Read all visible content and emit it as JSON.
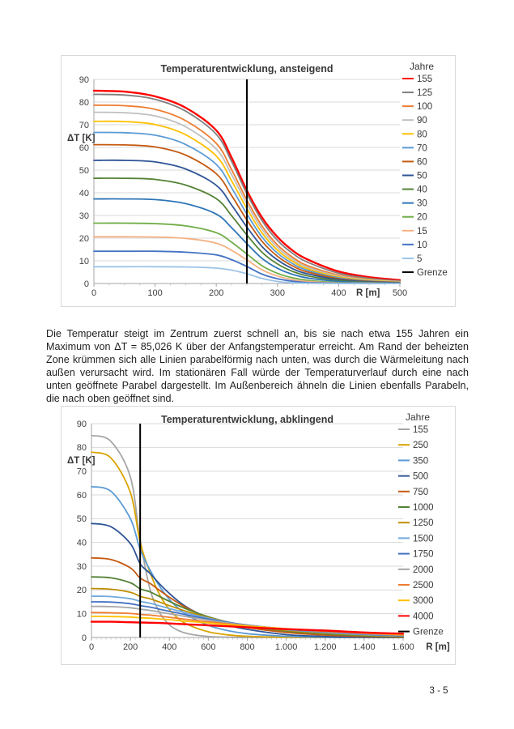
{
  "page": {
    "paragraph": "Die Temperatur steigt im Zentrum zuerst schnell an, bis sie nach etwa 155 Jahren ein Maximum von ΔT = 85,026 K über der Anfangstemperatur erreicht. Am Rand der beheizten Zone krümmen sich alle Linien parabelförmig nach unten, was durch die Wärmeleitung nach außen verursacht wird. Im stationären Fall würde der Temperaturverlauf durch eine nach unten geöffnete Parabel dargestellt. Im Außenbereich ähneln die Linien ebenfalls Parabeln, die nach oben geöffnet sind.",
    "page_number": "3 - 5"
  },
  "colors": {
    "grid": "#d9d9d9",
    "axis": "#a6a6a6",
    "minor_tick": "#bfbfbf",
    "boundary": "#000000"
  },
  "chart_data": [
    {
      "type": "line",
      "title": "Temperaturentwicklung, ansteigend",
      "ylabel": "ΔT [K]",
      "xlabel": "R [m]",
      "legend_title": "Jahre",
      "xlim": [
        0,
        500
      ],
      "ylim": [
        0,
        90
      ],
      "xticks": [
        0,
        100,
        200,
        300,
        400,
        500
      ],
      "xtick_labels": [
        "0",
        "100",
        "200",
        "300",
        "400",
        "500"
      ],
      "yticks": [
        0,
        10,
        20,
        30,
        40,
        50,
        60,
        70,
        80,
        90
      ],
      "ytick_labels": [
        "0",
        "10",
        "20",
        "30",
        "40",
        "50",
        "60",
        "70",
        "80",
        "90"
      ],
      "minor_xtick_step": 25,
      "grid": "horizontal",
      "legend_position": "right",
      "boundary": {
        "name": "Grenze",
        "x": 250,
        "color": "#000000"
      },
      "x": [
        0,
        50,
        100,
        150,
        200,
        225,
        250,
        275,
        300,
        325,
        350,
        400,
        450,
        500
      ],
      "series": [
        {
          "name": "155",
          "color": "#ff0000",
          "width": 2.4,
          "values": [
            85,
            84.6,
            82.5,
            77.5,
            67.5,
            55.5,
            41,
            29,
            20.5,
            14.5,
            10.5,
            5.3,
            2.8,
            1.5
          ]
        },
        {
          "name": "125",
          "color": "#7f7f7f",
          "width": 1.8,
          "values": [
            83.4,
            83.1,
            81.2,
            76,
            65.8,
            53.8,
            39.6,
            27.6,
            19,
            13.2,
            9.3,
            4.5,
            2.3,
            1.1
          ]
        },
        {
          "name": "100",
          "color": "#ed7d31",
          "width": 1.8,
          "values": [
            78.6,
            78.4,
            76.8,
            71.8,
            61.8,
            50.2,
            36.8,
            25.2,
            17,
            11.5,
            7.8,
            3.7,
            1.8,
            0.9
          ]
        },
        {
          "name": "90",
          "color": "#bfbfbf",
          "width": 1.8,
          "values": [
            75.5,
            75.3,
            73.9,
            69.1,
            59.3,
            48,
            35.1,
            23.8,
            15.9,
            10.6,
            7.1,
            3.3,
            1.6,
            0.8
          ]
        },
        {
          "name": "80",
          "color": "#ffc000",
          "width": 1.8,
          "values": [
            71.5,
            71.4,
            70.1,
            65.6,
            56.2,
            45.3,
            33,
            22.2,
            14.7,
            9.7,
            6.4,
            2.9,
            1.4,
            0.6
          ]
        },
        {
          "name": "70",
          "color": "#5b9bd5",
          "width": 1.8,
          "values": [
            66.6,
            66.5,
            65.4,
            61.3,
            52.5,
            42.2,
            30.6,
            20.4,
            13.4,
            8.7,
            5.7,
            2.5,
            1.1,
            0.5
          ]
        },
        {
          "name": "60",
          "color": "#c55a11",
          "width": 1.8,
          "values": [
            61.2,
            61.1,
            60.2,
            56.6,
            48.4,
            38.8,
            28,
            18.5,
            12,
            7.7,
            5,
            2.1,
            0.9,
            0.4
          ]
        },
        {
          "name": "50",
          "color": "#2f5597",
          "width": 1.8,
          "values": [
            54.3,
            54.3,
            53.6,
            50.5,
            43.3,
            34.6,
            24.9,
            16.2,
            10.4,
            6.5,
            4.2,
            1.7,
            0.7,
            0.3
          ]
        },
        {
          "name": "40",
          "color": "#548235",
          "width": 1.8,
          "values": [
            46.4,
            46.4,
            45.9,
            43.4,
            37.4,
            29.9,
            21.4,
            13.7,
            8.6,
            5.3,
            3.3,
            1.3,
            0.5,
            0.2
          ]
        },
        {
          "name": "30",
          "color": "#2e75b6",
          "width": 1.8,
          "values": [
            37.3,
            37.3,
            37,
            35.2,
            30.6,
            24.6,
            17.6,
            11,
            6.7,
            4,
            2.4,
            0.9,
            0.3,
            0.1
          ]
        },
        {
          "name": "20",
          "color": "#70ad47",
          "width": 1.8,
          "values": [
            26.6,
            26.6,
            26.4,
            25.4,
            22.4,
            18.2,
            13,
            7.8,
            4.5,
            2.5,
            1.4,
            0.4,
            0.1,
            0
          ]
        },
        {
          "name": "15",
          "color": "#f4b183",
          "width": 1.8,
          "values": [
            20.6,
            20.6,
            20.5,
            19.9,
            17.8,
            14.6,
            10.4,
            6,
            3.3,
            1.7,
            0.9,
            0.2,
            0.1,
            0
          ]
        },
        {
          "name": "10",
          "color": "#4472c4",
          "width": 1.8,
          "values": [
            14.2,
            14.2,
            14.2,
            13.8,
            12.6,
            10.5,
            7.5,
            4.1,
            2.1,
            1,
            0.4,
            0.1,
            0,
            0
          ]
        },
        {
          "name": "5",
          "color": "#9dc3e6",
          "width": 1.8,
          "values": [
            7.4,
            7.4,
            7.4,
            7.3,
            6.8,
            5.9,
            4.3,
            2.2,
            0.9,
            0.3,
            0.1,
            0,
            0,
            0
          ]
        }
      ]
    },
    {
      "type": "line",
      "title": "Temperaturentwicklung, abklingend",
      "ylabel": "ΔT [K]",
      "xlabel": "R [m]",
      "legend_title": "Jahre",
      "xlim": [
        0,
        1600
      ],
      "ylim": [
        0,
        90
      ],
      "xticks": [
        0,
        200,
        400,
        600,
        800,
        1000,
        1200,
        1400,
        1600
      ],
      "xtick_labels": [
        "0",
        "200",
        "400",
        "600",
        "800",
        "1.000",
        "1.200",
        "1.400",
        "1.600"
      ],
      "yticks": [
        0,
        10,
        20,
        30,
        40,
        50,
        60,
        70,
        80,
        90
      ],
      "ytick_labels": [
        "0",
        "10",
        "20",
        "30",
        "40",
        "50",
        "60",
        "70",
        "80",
        "90"
      ],
      "minor_xtick_step": 25,
      "grid": "horizontal",
      "legend_position": "right",
      "boundary": {
        "name": "Grenze",
        "x": 250,
        "color": "#000000"
      },
      "x": [
        0,
        100,
        200,
        250,
        300,
        350,
        400,
        450,
        500,
        600,
        700,
        800,
        1000,
        1200,
        1400,
        1600
      ],
      "series": [
        {
          "name": "155",
          "color": "#a6a6a6",
          "width": 1.8,
          "values": [
            85,
            82.5,
            67.5,
            41,
            20.5,
            10.5,
            5.3,
            2.8,
            1.5,
            0.4,
            0.1,
            0,
            0,
            0,
            0,
            0
          ]
        },
        {
          "name": "250",
          "color": "#d9a300",
          "width": 1.8,
          "values": [
            78,
            75.5,
            61,
            40,
            27.5,
            18,
            11.7,
            7.7,
            5.2,
            2.4,
            1.1,
            0.5,
            0.1,
            0,
            0,
            0
          ]
        },
        {
          "name": "350",
          "color": "#5b9bd5",
          "width": 1.8,
          "values": [
            63.5,
            61.5,
            50,
            37,
            28.5,
            21.5,
            16,
            12,
            9,
            5.1,
            2.9,
            1.6,
            0.5,
            0.1,
            0,
            0
          ]
        },
        {
          "name": "500",
          "color": "#2f5597",
          "width": 1.8,
          "values": [
            48,
            46.6,
            39.5,
            31,
            27,
            22.5,
            18.5,
            15,
            12.2,
            8,
            5.2,
            3.4,
            1.2,
            0.4,
            0.1,
            0
          ]
        },
        {
          "name": "750",
          "color": "#c55a11",
          "width": 1.8,
          "values": [
            33.5,
            32.8,
            29.3,
            25,
            22.8,
            19.8,
            16.9,
            14.3,
            12,
            8.4,
            5.9,
            4.2,
            2.1,
            1,
            0.4,
            0.15
          ]
        },
        {
          "name": "1000",
          "color": "#548235",
          "width": 1.8,
          "values": [
            25.5,
            25.1,
            23,
            20.5,
            19.2,
            17.2,
            15.2,
            13.3,
            11.6,
            8.7,
            6.5,
            4.8,
            2.7,
            1.5,
            0.7,
            0.3
          ]
        },
        {
          "name": "1250",
          "color": "#bf8f00",
          "width": 1.8,
          "values": [
            20.6,
            20.3,
            19,
            17.3,
            16.3,
            14.9,
            13.4,
            12,
            10.7,
            8.4,
            6.5,
            5,
            3,
            1.8,
            1,
            0.45
          ]
        },
        {
          "name": "1500",
          "color": "#71a9dd",
          "width": 1.8,
          "values": [
            17.4,
            17.2,
            16.3,
            15.2,
            14.4,
            13.3,
            12.2,
            11.1,
            10,
            8.1,
            6.5,
            5.2,
            3.3,
            2.1,
            1.2,
            0.6
          ]
        },
        {
          "name": "1750",
          "color": "#4472c4",
          "width": 1.8,
          "values": [
            15,
            14.9,
            14.2,
            13.4,
            12.8,
            11.9,
            11,
            10.2,
            9.3,
            7.7,
            6.3,
            5.2,
            3.5,
            2.3,
            1.4,
            0.75
          ]
        },
        {
          "name": "2000",
          "color": "#a6a6a6",
          "width": 1.8,
          "values": [
            13.1,
            13,
            12.5,
            11.9,
            11.4,
            10.7,
            10,
            9.3,
            8.6,
            7.3,
            6.1,
            5.1,
            3.6,
            2.5,
            1.6,
            0.9
          ]
        },
        {
          "name": "2500",
          "color": "#ed7d31",
          "width": 1.8,
          "values": [
            10.5,
            10.4,
            10.1,
            9.7,
            9.4,
            9,
            8.5,
            8,
            7.5,
            6.6,
            5.7,
            4.9,
            3.6,
            2.6,
            1.8,
            1.1
          ]
        },
        {
          "name": "3000",
          "color": "#ffc000",
          "width": 1.8,
          "values": [
            8.9,
            8.8,
            8.6,
            8.3,
            8.1,
            7.8,
            7.5,
            7.1,
            6.8,
            6.1,
            5.4,
            4.8,
            3.7,
            2.8,
            2,
            1.3
          ]
        },
        {
          "name": "4000",
          "color": "#ff0000",
          "width": 2.4,
          "values": [
            6.6,
            6.6,
            6.4,
            6.3,
            6.2,
            6.1,
            5.9,
            5.7,
            5.5,
            5.1,
            4.7,
            4.3,
            3.5,
            2.9,
            2.1,
            1.6
          ]
        }
      ]
    }
  ]
}
